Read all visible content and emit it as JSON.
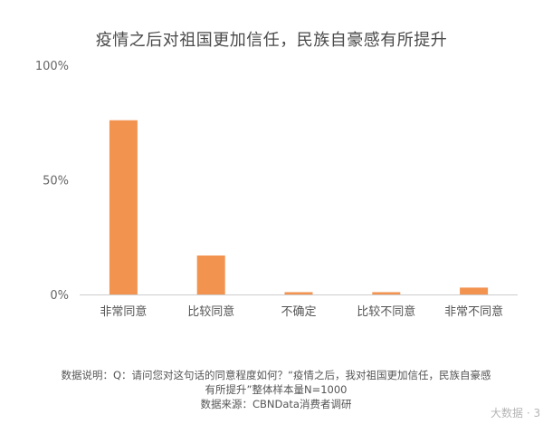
{
  "chart_data": {
    "type": "bar",
    "title": "疫情之后对祖国更加信任，民族自豪感有所提升",
    "categories": [
      "非常同意",
      "比较同意",
      "不确定",
      "比较不同意",
      "非常不同意"
    ],
    "values": [
      76,
      17,
      1,
      1,
      3
    ],
    "ylim": [
      0,
      100
    ],
    "yticks": [
      "0%",
      "50%",
      "100%"
    ],
    "ytick_values": [
      0,
      50,
      100
    ],
    "bar_color": "#f29350",
    "grid": false
  },
  "notes": {
    "line1": "数据说明：Q：请问您对这句话的同意程度如何？“疫情之后，我对祖国更加信任，民族自豪感",
    "line2": "有所提升”整体样本量N=1000",
    "line3": "数据来源：CBNData消费者调研"
  },
  "watermark": "大数据 · 3"
}
